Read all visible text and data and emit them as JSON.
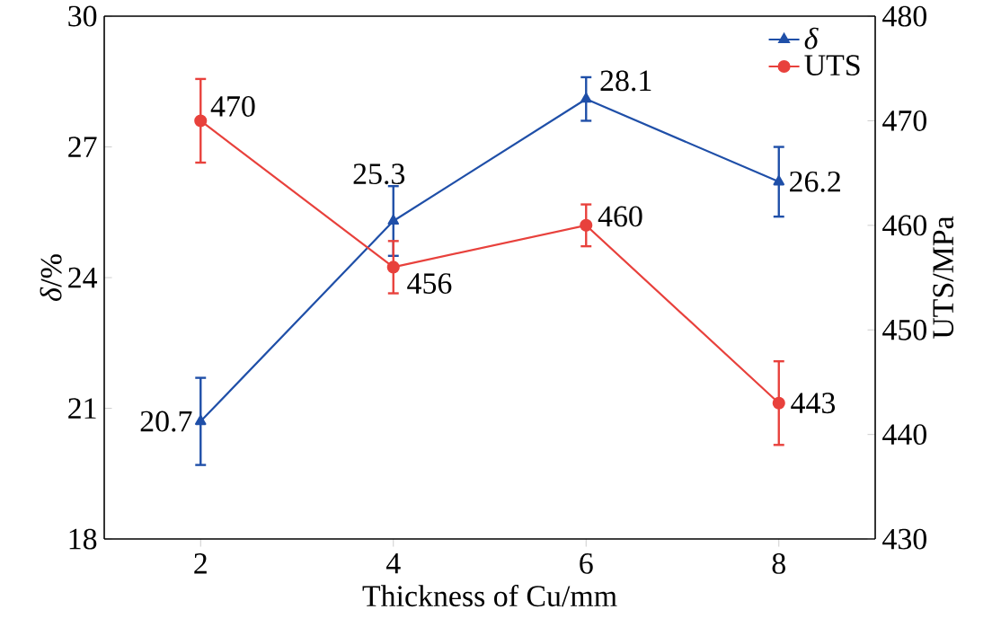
{
  "chart_data": {
    "type": "line",
    "xlabel": "Thickness of Cu/mm",
    "ylabel": "*δ*/%",
    "y2label": "UTS/MPa",
    "x": [
      2,
      4,
      6,
      8
    ],
    "series": [
      {
        "name": "*δ*",
        "color": "#1f4fa8",
        "marker": "triangle",
        "values": [
          20.7,
          25.3,
          28.1,
          26.2
        ],
        "errors": [
          1.0,
          0.8,
          0.5,
          0.8
        ]
      },
      {
        "name": "UTS",
        "color": "#e8413c",
        "marker": "circle",
        "axis": "y2",
        "values": [
          470,
          456,
          460,
          443
        ],
        "errors": [
          4,
          2.5,
          2,
          4
        ]
      }
    ],
    "xlim": [
      1,
      9
    ],
    "xticks": [
      2,
      4,
      6,
      8
    ],
    "ylim": [
      18,
      30
    ],
    "yticks": [
      18,
      21,
      24,
      27,
      30
    ],
    "y2lim": [
      430,
      480
    ],
    "y2ticks": [
      430,
      440,
      450,
      460,
      470,
      480
    ],
    "data_labels": true,
    "legend": "top right",
    "grid": false,
    "line_style": "solid"
  }
}
